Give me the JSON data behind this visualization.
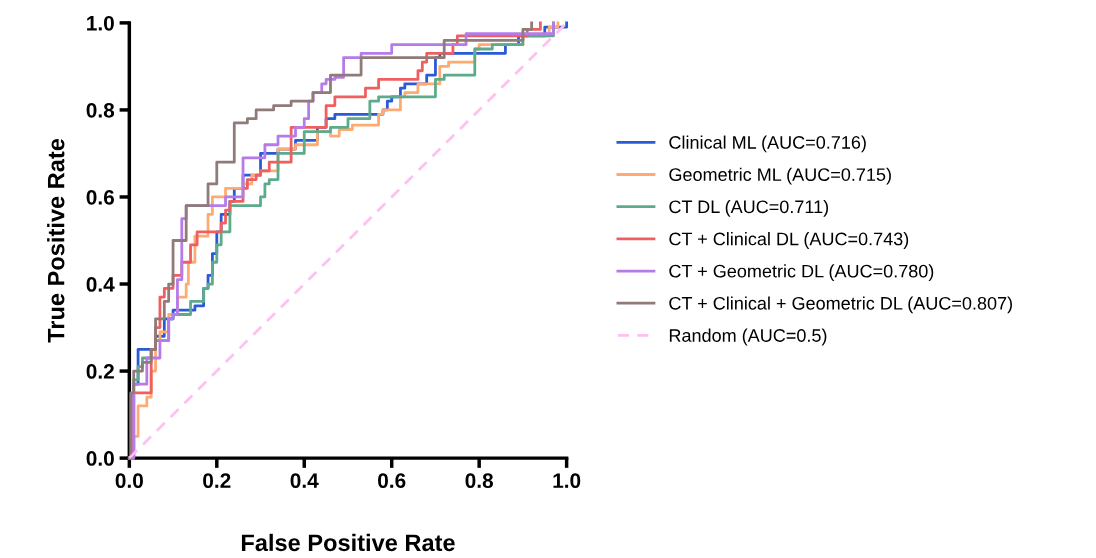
{
  "chart_data": {
    "type": "step",
    "xlabel": "False Positive Rate",
    "ylabel": "True Positive Rate",
    "xlim": [
      0,
      1
    ],
    "ylim": [
      0,
      1
    ],
    "xticks": [
      {
        "value": 0,
        "label": "0.0"
      },
      {
        "value": 0.2,
        "label": "0.2"
      },
      {
        "value": 0.4,
        "label": "0.4"
      },
      {
        "value": 0.6,
        "label": "0.6"
      },
      {
        "value": 0.8,
        "label": "0.8"
      },
      {
        "value": 1,
        "label": "1.0"
      }
    ],
    "yticks": [
      {
        "value": 0,
        "label": "0.0"
      },
      {
        "value": 0.2,
        "label": "0.2"
      },
      {
        "value": 0.4,
        "label": "0.4"
      },
      {
        "value": 0.6,
        "label": "0.6"
      },
      {
        "value": 0.8,
        "label": "0.8"
      },
      {
        "value": 1,
        "label": "1.0"
      }
    ],
    "grid": false,
    "legend": "right",
    "series": [
      {
        "name": "Clinical ML (AUC=0.716)",
        "color": "#2a5bd7",
        "x": [
          0,
          0.01,
          0.02,
          0.05,
          0.06,
          0.08,
          0.1,
          0.15,
          0.17,
          0.18,
          0.19,
          0.2,
          0.21,
          0.23,
          0.24,
          0.26,
          0.3,
          0.34,
          0.38,
          0.43,
          0.45,
          0.47,
          0.58,
          0.59,
          0.6,
          0.62,
          0.63,
          0.68,
          0.7,
          0.71,
          0.86,
          0.89,
          0.95,
          1.0
        ],
        "values": [
          0,
          0.17,
          0.25,
          0.25,
          0.28,
          0.32,
          0.34,
          0.35,
          0.39,
          0.42,
          0.47,
          0.52,
          0.56,
          0.59,
          0.62,
          0.65,
          0.7,
          0.71,
          0.73,
          0.76,
          0.78,
          0.79,
          0.8,
          0.82,
          0.83,
          0.85,
          0.86,
          0.88,
          0.92,
          0.93,
          0.95,
          0.97,
          0.99,
          1.0
        ]
      },
      {
        "name": "Geometric ML (AUC=0.715)",
        "color": "#ffaa70",
        "x": [
          0,
          0.01,
          0.02,
          0.04,
          0.05,
          0.06,
          0.07,
          0.09,
          0.11,
          0.13,
          0.135,
          0.15,
          0.18,
          0.19,
          0.22,
          0.26,
          0.28,
          0.3,
          0.34,
          0.38,
          0.43,
          0.46,
          0.48,
          0.51,
          0.57,
          0.58,
          0.62,
          0.63,
          0.66,
          0.71,
          0.73,
          0.79,
          0.8,
          0.9,
          0.96,
          0.98
        ],
        "values": [
          0,
          0.05,
          0.12,
          0.14,
          0.2,
          0.27,
          0.29,
          0.33,
          0.37,
          0.4,
          0.45,
          0.51,
          0.56,
          0.6,
          0.62,
          0.63,
          0.65,
          0.66,
          0.71,
          0.72,
          0.75,
          0.74,
          0.755,
          0.765,
          0.79,
          0.8,
          0.83,
          0.84,
          0.86,
          0.9,
          0.91,
          0.94,
          0.95,
          0.97,
          0.99,
          1.0
        ]
      },
      {
        "name": "CT DL (AUC=0.711)",
        "color": "#5dab8b",
        "x": [
          0,
          0.01,
          0.02,
          0.03,
          0.05,
          0.06,
          0.09,
          0.1,
          0.14,
          0.17,
          0.18,
          0.19,
          0.2,
          0.21,
          0.23,
          0.3,
          0.31,
          0.32,
          0.34,
          0.4,
          0.46,
          0.5,
          0.55,
          0.57,
          0.7,
          0.72,
          0.79,
          0.8,
          0.83,
          0.9,
          0.97
        ],
        "values": [
          0,
          0.18,
          0.21,
          0.23,
          0.25,
          0.27,
          0.32,
          0.33,
          0.36,
          0.39,
          0.4,
          0.45,
          0.49,
          0.52,
          0.58,
          0.6,
          0.63,
          0.64,
          0.7,
          0.75,
          0.76,
          0.78,
          0.82,
          0.83,
          0.87,
          0.88,
          0.94,
          0.94,
          0.95,
          0.97,
          1.0
        ]
      },
      {
        "name": "CT + Clinical DL (AUC=0.743)",
        "color": "#ef5f5f",
        "x": [
          0,
          0.01,
          0.04,
          0.05,
          0.06,
          0.07,
          0.08,
          0.1,
          0.12,
          0.14,
          0.155,
          0.21,
          0.22,
          0.23,
          0.26,
          0.27,
          0.29,
          0.3,
          0.32,
          0.37,
          0.45,
          0.47,
          0.54,
          0.57,
          0.66,
          0.67,
          0.68,
          0.74,
          0.75,
          0.91,
          0.94
        ],
        "values": [
          0,
          0.15,
          0.15,
          0.25,
          0.3,
          0.37,
          0.39,
          0.42,
          0.45,
          0.49,
          0.52,
          0.54,
          0.57,
          0.59,
          0.62,
          0.64,
          0.65,
          0.66,
          0.68,
          0.76,
          0.81,
          0.83,
          0.85,
          0.87,
          0.89,
          0.91,
          0.93,
          0.95,
          0.97,
          0.985,
          1.0
        ]
      },
      {
        "name": "CT + Geometric DL (AUC=0.780)",
        "color": "#b57be8",
        "x": [
          0,
          0.01,
          0.04,
          0.07,
          0.09,
          0.1,
          0.11,
          0.12,
          0.13,
          0.22,
          0.26,
          0.31,
          0.34,
          0.38,
          0.4,
          0.41,
          0.42,
          0.44,
          0.45,
          0.47,
          0.49,
          0.53,
          0.6,
          0.77,
          0.97
        ],
        "values": [
          0,
          0.17,
          0.23,
          0.27,
          0.32,
          0.33,
          0.41,
          0.55,
          0.58,
          0.6,
          0.69,
          0.72,
          0.74,
          0.76,
          0.78,
          0.82,
          0.84,
          0.86,
          0.87,
          0.875,
          0.92,
          0.93,
          0.95,
          0.975,
          1.0
        ]
      },
      {
        "name": "CT + Clinical + Geometric DL (AUC=0.807)",
        "color": "#8f7b78",
        "x": [
          0,
          0.003,
          0.01,
          0.03,
          0.05,
          0.06,
          0.08,
          0.09,
          0.1,
          0.13,
          0.18,
          0.2,
          0.24,
          0.27,
          0.29,
          0.33,
          0.37,
          0.42,
          0.46,
          0.53,
          0.72,
          0.9,
          0.92
        ],
        "values": [
          0,
          0.15,
          0.2,
          0.22,
          0.25,
          0.32,
          0.36,
          0.4,
          0.5,
          0.58,
          0.63,
          0.68,
          0.77,
          0.78,
          0.8,
          0.81,
          0.82,
          0.84,
          0.88,
          0.92,
          0.96,
          0.985,
          1.0
        ]
      },
      {
        "name": "Random (AUC=0.5)",
        "color": "#ffc0ef",
        "type": "line",
        "line_style": "dashed",
        "x": [
          0,
          1
        ],
        "values": [
          0,
          1
        ]
      }
    ]
  }
}
